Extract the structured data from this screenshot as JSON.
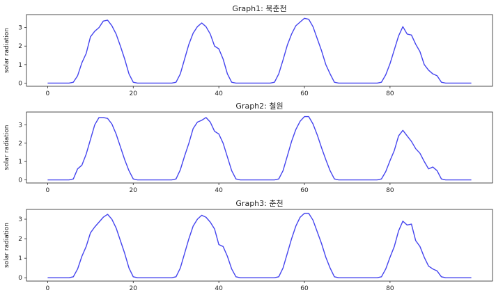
{
  "chart_data": [
    {
      "type": "line",
      "title": "Graph1: 북춘천",
      "xlabel": "",
      "ylabel": "solar radiation",
      "xlim": [
        -4.95,
        103.95
      ],
      "ylim": [
        -0.17,
        3.7
      ],
      "xticks": [
        0,
        20,
        40,
        60,
        80
      ],
      "yticks": [
        0,
        1,
        2,
        3
      ],
      "color": "#4444ee",
      "x": [
        0,
        1,
        2,
        3,
        4,
        5,
        6,
        7,
        8,
        9,
        10,
        11,
        12,
        13,
        14,
        15,
        16,
        17,
        18,
        19,
        20,
        21,
        22,
        23,
        24,
        25,
        26,
        27,
        28,
        29,
        30,
        31,
        32,
        33,
        34,
        35,
        36,
        37,
        38,
        39,
        40,
        41,
        42,
        43,
        44,
        45,
        46,
        47,
        48,
        49,
        50,
        51,
        52,
        53,
        54,
        55,
        56,
        57,
        58,
        59,
        60,
        61,
        62,
        63,
        64,
        65,
        66,
        67,
        68,
        69,
        70,
        71,
        72,
        73,
        74,
        75,
        76,
        77,
        78,
        79,
        80,
        81,
        82,
        83,
        84,
        85,
        86,
        87,
        88,
        89,
        90,
        91,
        92,
        93,
        94,
        95,
        96,
        97,
        98,
        99
      ],
      "y": [
        0,
        0,
        0,
        0,
        0,
        0,
        0.05,
        0.4,
        1.1,
        1.6,
        2.5,
        2.8,
        3.0,
        3.35,
        3.4,
        3.1,
        2.65,
        2.0,
        1.3,
        0.5,
        0.05,
        0,
        0,
        0,
        0,
        0,
        0,
        0,
        0,
        0,
        0.05,
        0.5,
        1.3,
        2.1,
        2.7,
        3.05,
        3.25,
        3.05,
        2.65,
        2.0,
        1.85,
        1.3,
        0.5,
        0.05,
        0,
        0,
        0,
        0,
        0,
        0,
        0,
        0,
        0,
        0.05,
        0.5,
        1.25,
        2.05,
        2.65,
        3.1,
        3.3,
        3.5,
        3.45,
        3.05,
        2.4,
        1.75,
        1.0,
        0.5,
        0.05,
        0,
        0,
        0,
        0,
        0,
        0,
        0,
        0,
        0,
        0,
        0.05,
        0.45,
        1.05,
        1.8,
        2.55,
        3.05,
        2.65,
        2.6,
        2.1,
        1.7,
        1.0,
        0.7,
        0.5,
        0.4,
        0.05,
        0,
        0,
        0,
        0,
        0,
        0,
        0
      ]
    },
    {
      "type": "line",
      "title": "Graph2: 철원",
      "xlabel": "",
      "ylabel": "solar radiation",
      "xlim": [
        -4.95,
        103.95
      ],
      "ylim": [
        -0.17,
        3.7
      ],
      "xticks": [
        0,
        20,
        40,
        60,
        80
      ],
      "yticks": [
        0,
        1,
        2,
        3
      ],
      "color": "#4444ee",
      "x": [
        0,
        1,
        2,
        3,
        4,
        5,
        6,
        7,
        8,
        9,
        10,
        11,
        12,
        13,
        14,
        15,
        16,
        17,
        18,
        19,
        20,
        21,
        22,
        23,
        24,
        25,
        26,
        27,
        28,
        29,
        30,
        31,
        32,
        33,
        34,
        35,
        36,
        37,
        38,
        39,
        40,
        41,
        42,
        43,
        44,
        45,
        46,
        47,
        48,
        49,
        50,
        51,
        52,
        53,
        54,
        55,
        56,
        57,
        58,
        59,
        60,
        61,
        62,
        63,
        64,
        65,
        66,
        67,
        68,
        69,
        70,
        71,
        72,
        73,
        74,
        75,
        76,
        77,
        78,
        79,
        80,
        81,
        82,
        83,
        84,
        85,
        86,
        87,
        88,
        89,
        90,
        91,
        92,
        93,
        94,
        95,
        96,
        97,
        98,
        99
      ],
      "y": [
        0,
        0,
        0,
        0,
        0,
        0,
        0.05,
        0.6,
        0.8,
        1.4,
        2.2,
        3.0,
        3.4,
        3.4,
        3.35,
        3.05,
        2.5,
        1.8,
        1.1,
        0.5,
        0.05,
        0,
        0,
        0,
        0,
        0,
        0,
        0,
        0,
        0,
        0.05,
        0.55,
        1.3,
        2.0,
        2.8,
        3.15,
        3.25,
        3.4,
        3.15,
        2.65,
        2.5,
        2.0,
        1.25,
        0.5,
        0.05,
        0,
        0,
        0,
        0,
        0,
        0,
        0,
        0,
        0,
        0.05,
        0.5,
        1.3,
        2.1,
        2.75,
        3.2,
        3.45,
        3.45,
        3.05,
        2.45,
        1.75,
        1.1,
        0.5,
        0.05,
        0,
        0,
        0,
        0,
        0,
        0,
        0,
        0,
        0,
        0,
        0.05,
        0.45,
        1.05,
        1.6,
        2.4,
        2.7,
        2.4,
        2.1,
        1.7,
        1.45,
        1.0,
        0.6,
        0.7,
        0.5,
        0.05,
        0,
        0,
        0,
        0,
        0,
        0,
        0
      ]
    },
    {
      "type": "line",
      "title": "Graph3: 춘천",
      "xlabel": "",
      "ylabel": "solar radiation",
      "xlim": [
        -4.95,
        103.95
      ],
      "ylim": [
        -0.17,
        3.5
      ],
      "xticks": [
        0,
        20,
        40,
        60,
        80
      ],
      "yticks": [
        0,
        1,
        2,
        3
      ],
      "color": "#4444ee",
      "x": [
        0,
        1,
        2,
        3,
        4,
        5,
        6,
        7,
        8,
        9,
        10,
        11,
        12,
        13,
        14,
        15,
        16,
        17,
        18,
        19,
        20,
        21,
        22,
        23,
        24,
        25,
        26,
        27,
        28,
        29,
        30,
        31,
        32,
        33,
        34,
        35,
        36,
        37,
        38,
        39,
        40,
        41,
        42,
        43,
        44,
        45,
        46,
        47,
        48,
        49,
        50,
        51,
        52,
        53,
        54,
        55,
        56,
        57,
        58,
        59,
        60,
        61,
        62,
        63,
        64,
        65,
        66,
        67,
        68,
        69,
        70,
        71,
        72,
        73,
        74,
        75,
        76,
        77,
        78,
        79,
        80,
        81,
        82,
        83,
        84,
        85,
        86,
        87,
        88,
        89,
        90,
        91,
        92,
        93,
        94,
        95,
        96,
        97,
        98,
        99
      ],
      "y": [
        0,
        0,
        0,
        0,
        0,
        0,
        0.05,
        0.45,
        1.1,
        1.6,
        2.3,
        2.6,
        2.85,
        3.1,
        3.25,
        3.0,
        2.55,
        1.9,
        1.25,
        0.5,
        0.05,
        0,
        0,
        0,
        0,
        0,
        0,
        0,
        0,
        0,
        0.05,
        0.5,
        1.25,
        2.0,
        2.65,
        3.0,
        3.2,
        3.1,
        2.85,
        2.5,
        1.7,
        1.6,
        1.1,
        0.45,
        0.05,
        0,
        0,
        0,
        0,
        0,
        0,
        0,
        0,
        0,
        0.05,
        0.5,
        1.25,
        2.0,
        2.65,
        3.1,
        3.3,
        3.3,
        2.95,
        2.35,
        1.75,
        1.05,
        0.5,
        0.05,
        0,
        0,
        0,
        0,
        0,
        0,
        0,
        0,
        0,
        0,
        0.05,
        0.45,
        1.05,
        1.6,
        2.4,
        2.9,
        2.7,
        2.75,
        1.9,
        1.6,
        1.05,
        0.6,
        0.45,
        0.35,
        0.05,
        0,
        0,
        0,
        0,
        0,
        0,
        0
      ]
    }
  ]
}
